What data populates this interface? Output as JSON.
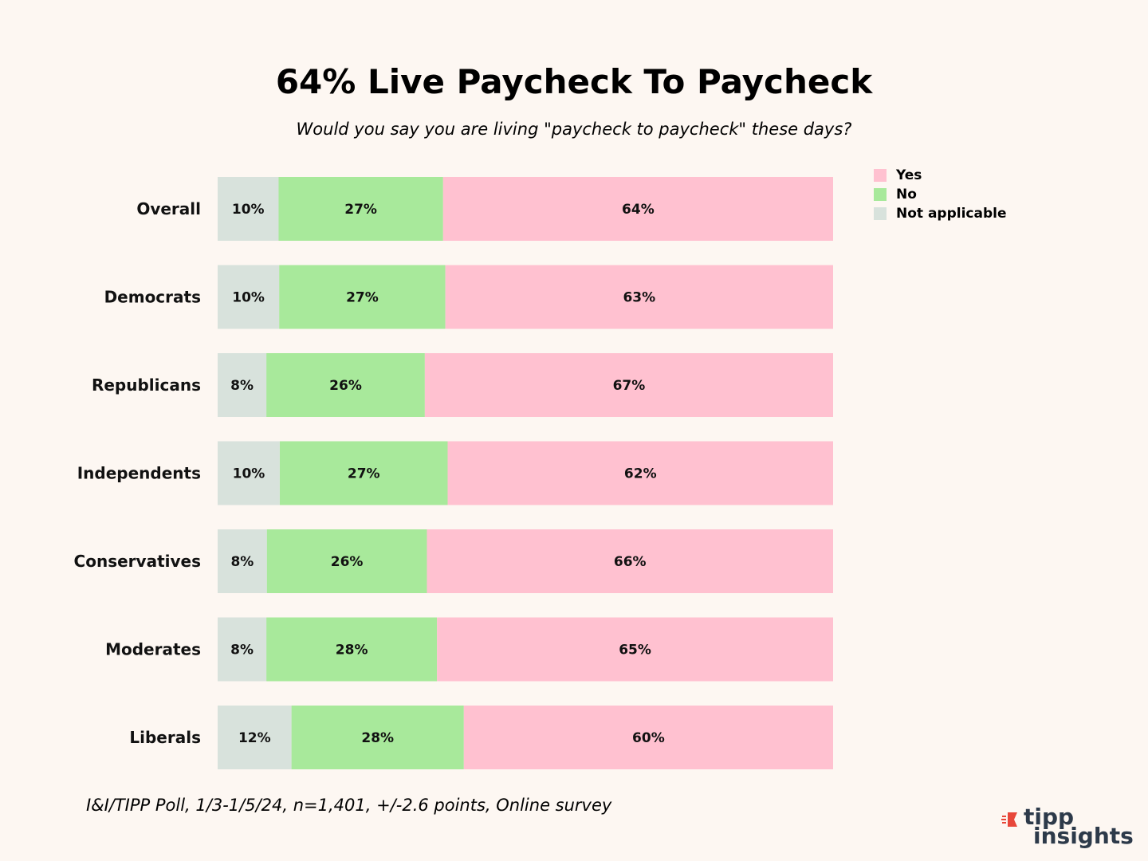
{
  "chart_data": {
    "type": "bar",
    "orientation": "horizontal",
    "stacked": true,
    "title": "64% Live Paycheck To Paycheck",
    "subtitle": "Would you say you are living \"paycheck to paycheck\" these days?",
    "categories": [
      "Overall",
      "Democrats",
      "Republicans",
      "Independents",
      "Conservatives",
      "Moderates",
      "Liberals"
    ],
    "series": [
      {
        "name": "Not applicable",
        "color": "#d8e2dc",
        "values": [
          10,
          10,
          8,
          10,
          8,
          8,
          12
        ],
        "labels": [
          "10%",
          "10%",
          "8%",
          "10%",
          "8%",
          "8%",
          "12%"
        ]
      },
      {
        "name": "No",
        "color": "#a8e99b",
        "values": [
          27,
          27,
          26,
          27,
          26,
          28,
          28
        ],
        "labels": [
          "27%",
          "27%",
          "26%",
          "27%",
          "26%",
          "28%",
          "28%"
        ]
      },
      {
        "name": "Yes",
        "color": "#ffc1d0",
        "values": [
          64,
          63,
          67,
          62,
          66,
          65,
          60
        ],
        "labels": [
          "64%",
          "63%",
          "67%",
          "62%",
          "66%",
          "65%",
          "60%"
        ]
      }
    ],
    "legend": {
      "placement": "top-right",
      "items": [
        {
          "name": "Yes",
          "color": "#ffc1d0"
        },
        {
          "name": "No",
          "color": "#a8e99b"
        },
        {
          "name": "Not applicable",
          "color": "#d8e2dc"
        }
      ]
    },
    "grid": false
  },
  "source": "I&I/TIPP Poll, 1/3-1/5/24, n=1,401, +/-2.6 points, Online survey",
  "logo": {
    "line1": "tipp",
    "line2": "insights",
    "accent_color": "#e8473a"
  }
}
